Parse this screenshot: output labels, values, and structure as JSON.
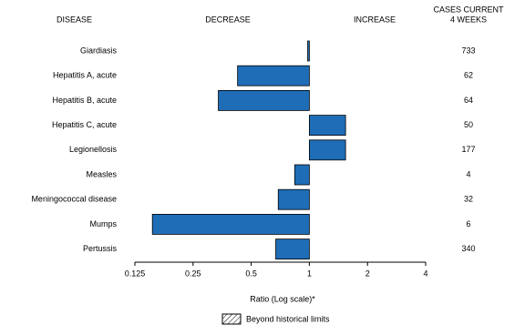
{
  "chart_data": {
    "type": "bar",
    "orientation": "horizontal",
    "log_scale": true,
    "log_base": 2,
    "baseline": 1,
    "headers": {
      "disease": "DISEASE",
      "decrease": "DECREASE",
      "increase": "INCREASE",
      "cases": [
        "CASES CURRENT",
        "4 WEEKS"
      ]
    },
    "categories": [
      "Giardiasis",
      "Hepatitis A, acute",
      "Hepatitis B, acute",
      "Hepatitis C, acute",
      "Legionellosis",
      "Measles",
      "Meningococcal disease",
      "Mumps",
      "Pertussis"
    ],
    "values": [
      0.98,
      0.425,
      0.338,
      1.54,
      1.54,
      0.84,
      0.69,
      0.154,
      0.67
    ],
    "cases": [
      733,
      62,
      64,
      50,
      177,
      4,
      32,
      6,
      340
    ],
    "color": "#1f6db6",
    "xlim": [
      0.125,
      4
    ],
    "xticks": [
      0.125,
      0.25,
      0.5,
      1,
      2,
      4
    ],
    "xlabel": "Ratio (Log scale)*",
    "legend_label": "Beyond historical limits"
  }
}
